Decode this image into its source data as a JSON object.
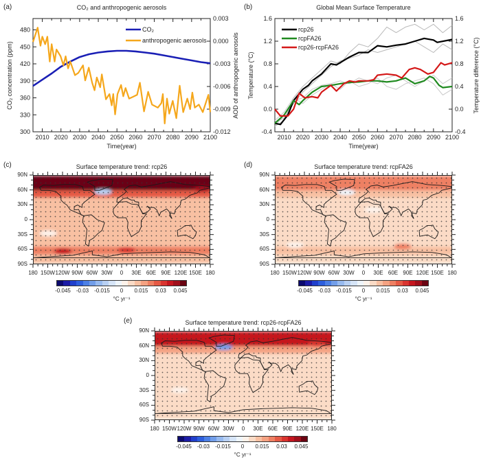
{
  "panels": {
    "a": {
      "label": "(a)"
    },
    "b": {
      "label": "(b)"
    },
    "c": {
      "label": "(c)"
    },
    "d": {
      "label": "(d)"
    },
    "e": {
      "label": "(e)"
    }
  },
  "colors": {
    "co2": "#1a1fb5",
    "aerosol": "#f5a71c",
    "rcp26": "#000000",
    "rcpFA26": "#1f8a1f",
    "diff": "#d41818",
    "ensemble": "#b0b0b0"
  },
  "map_axes": {
    "lat_ticks": [
      "90N",
      "60N",
      "30N",
      "0",
      "30S",
      "60S",
      "90S"
    ],
    "lon_ticks": [
      "180",
      "150W",
      "120W",
      "90W",
      "60W",
      "30W",
      "0",
      "30E",
      "60E",
      "90E",
      "120E",
      "150E",
      "180"
    ]
  },
  "colorbar": {
    "labels": [
      "-0.045",
      "-0.03",
      "-0.015",
      "0",
      "0.015",
      "0.03",
      "0.045"
    ],
    "unit": "°C yr⁻¹",
    "colors": [
      "#0c0a6e",
      "#1c1ca6",
      "#2140cc",
      "#2e5fdd",
      "#4d80e5",
      "#729ee9",
      "#97baef",
      "#b8d0f3",
      "#d6e5f8",
      "#eef5fb",
      "#fdf2ea",
      "#fbdbc6",
      "#f8c0a2",
      "#f4a282",
      "#ee8063",
      "#e55a45",
      "#d9342f",
      "#c5161f",
      "#a00f1b",
      "#6a0412"
    ]
  },
  "chart_data": [
    {
      "type": "line",
      "title": "CO₂ and anthropogenic aerosols",
      "xlabel": "Time(year)",
      "ylabel": "CO₂ concentration (ppm)",
      "ylabel_right": "AOD of anthropogenic aerosols",
      "xlim": [
        2005,
        2100
      ],
      "ylim": [
        300,
        500
      ],
      "ylim_right": [
        -0.012,
        0.003
      ],
      "xticks": [
        2010,
        2020,
        2030,
        2040,
        2050,
        2060,
        2070,
        2080,
        2090,
        2100
      ],
      "yticks": [
        300,
        330,
        360,
        390,
        420,
        450,
        480
      ],
      "yticks_right": [
        "-0.012",
        "-0.009",
        "-0.006",
        "-0.003",
        "0.000",
        "0.003"
      ],
      "legend": "top-right",
      "series": [
        {
          "name": "CO₂",
          "axis": "left",
          "color": "#1a1fb5",
          "x": [
            2005,
            2010,
            2015,
            2020,
            2025,
            2030,
            2035,
            2040,
            2045,
            2050,
            2055,
            2060,
            2065,
            2070,
            2075,
            2080,
            2085,
            2090,
            2095,
            2100
          ],
          "y": [
            381,
            392,
            403,
            415,
            424,
            432,
            437,
            440,
            442,
            443,
            443,
            442,
            440,
            438,
            435,
            432,
            429,
            426,
            423,
            421
          ]
        },
        {
          "name": "anthropogenic aerosols",
          "axis": "right",
          "color": "#f5a71c",
          "x": [
            2005,
            2007.5,
            2009,
            2010,
            2011.5,
            2012.7,
            2014,
            2015,
            2016.6,
            2017.6,
            2019.8,
            2021.3,
            2022.5,
            2023.8,
            2025,
            2027.5,
            2029.3,
            2031.8,
            2033,
            2034.9,
            2036.7,
            2038,
            2039.2,
            2041,
            2041.9,
            2044.1,
            2046,
            2047.2,
            2048,
            2049,
            2050.3,
            2052.2,
            2053.4,
            2054.6,
            2056.5,
            2058.3,
            2060.8,
            2062.3,
            2064.5,
            2066.7,
            2068.8,
            2071.9,
            2073.8,
            2074.6,
            2075.6,
            2076.8,
            2078,
            2079.9,
            2081.8,
            2083.6,
            2085.5,
            2087.7,
            2089.2,
            2090.4,
            2091.7,
            2093.9,
            2096,
            2099,
            2100
          ],
          "y": [
            -0.0001,
            0.0018,
            -0.0006,
            0.0006,
            -0.0004,
            0.0006,
            -0.0027,
            -0.0004,
            -0.0027,
            -0.0011,
            -0.002,
            -0.0032,
            -0.002,
            -0.0036,
            -0.0027,
            -0.0045,
            -0.0042,
            -0.0032,
            -0.0052,
            -0.0035,
            -0.0055,
            -0.0065,
            -0.0048,
            -0.0061,
            -0.0044,
            -0.0077,
            -0.007,
            -0.0085,
            -0.007,
            -0.0097,
            -0.007,
            -0.0058,
            -0.0073,
            -0.0062,
            -0.0076,
            -0.0074,
            -0.0071,
            -0.0055,
            -0.0093,
            -0.0067,
            -0.0084,
            -0.0088,
            -0.0082,
            -0.007,
            -0.0109,
            -0.0076,
            -0.0096,
            -0.0079,
            -0.0102,
            -0.0059,
            -0.0094,
            -0.0076,
            -0.009,
            -0.0068,
            -0.0088,
            -0.0084,
            -0.0094,
            -0.0071,
            -0.0094
          ]
        }
      ]
    },
    {
      "type": "line",
      "title": "Global Mean Surface Temperature",
      "xlabel": "Time(year)",
      "ylabel": "Temperature (°C)",
      "ylabel_right": "Temperature difference (°C)",
      "xlim": [
        2005,
        2100
      ],
      "ylim": [
        -0.4,
        1.6
      ],
      "ylim_right": [
        -0.4,
        1.6
      ],
      "xticks": [
        2010,
        2020,
        2030,
        2040,
        2050,
        2060,
        2070,
        2080,
        2090,
        2100
      ],
      "yticks": [
        "-0.4",
        "0.0",
        "0.4",
        "0.8",
        "1.2",
        "1.6"
      ],
      "yticks_right": [
        "-0.4",
        "0.0",
        "0.4",
        "0.8",
        "1.2",
        "1.6"
      ],
      "legend": "top-left",
      "series": [
        {
          "color": "#b8b8b8",
          "ensemble": true,
          "x": [
            2005,
            2010,
            2015,
            2020,
            2025,
            2030,
            2035,
            2040,
            2045,
            2050,
            2055,
            2060,
            2065,
            2070,
            2075,
            2080,
            2085,
            2090,
            2095,
            2100
          ],
          "y": [
            -0.3,
            -0.2,
            0.2,
            0.4,
            0.55,
            0.7,
            0.85,
            0.8,
            1.0,
            1.15,
            1.1,
            1.25,
            1.45,
            1.35,
            1.45,
            1.5,
            1.4,
            1.5,
            1.35,
            1.48
          ]
        },
        {
          "color": "#b8b8b8",
          "ensemble": true,
          "x": [
            2005,
            2010,
            2015,
            2020,
            2025,
            2030,
            2035,
            2040,
            2045,
            2050,
            2055,
            2060,
            2065,
            2070,
            2075,
            2080,
            2085,
            2090,
            2095,
            2100
          ],
          "y": [
            -0.25,
            -0.15,
            0.1,
            0.3,
            0.45,
            0.6,
            0.75,
            0.85,
            0.9,
            0.95,
            1.05,
            1.0,
            1.05,
            1.1,
            1.15,
            1.2,
            1.1,
            1.0,
            1.15,
            1.05
          ]
        },
        {
          "color": "#c8c8c8",
          "ensemble": true,
          "x": [
            2005,
            2010,
            2015,
            2020,
            2025,
            2030,
            2035,
            2040,
            2045,
            2050,
            2055,
            2060,
            2065,
            2070,
            2075,
            2080,
            2085,
            2090,
            2095,
            2100
          ],
          "y": [
            -0.3,
            -0.1,
            0.15,
            0.2,
            0.35,
            0.42,
            0.45,
            0.35,
            0.5,
            0.4,
            0.45,
            0.55,
            0.4,
            0.35,
            0.45,
            0.5,
            0.55,
            0.45,
            0.25,
            0.35
          ]
        },
        {
          "color": "#c8c8c8",
          "ensemble": true,
          "x": [
            2005,
            2010,
            2015,
            2020,
            2025,
            2030,
            2035,
            2040,
            2045,
            2050,
            2055,
            2060,
            2065,
            2070,
            2075,
            2080,
            2085,
            2090,
            2095,
            2100
          ],
          "y": [
            -0.2,
            -0.05,
            0.2,
            0.1,
            0.25,
            0.35,
            0.45,
            0.5,
            0.45,
            0.55,
            0.5,
            0.45,
            0.55,
            0.6,
            0.5,
            0.4,
            0.5,
            0.6,
            0.45,
            0.55
          ]
        },
        {
          "name": "rcp26",
          "color": "#000000",
          "x": [
            2005,
            2008,
            2012,
            2015,
            2020,
            2023,
            2025,
            2030,
            2035,
            2038,
            2045,
            2050,
            2055,
            2060,
            2065,
            2070,
            2075,
            2080,
            2085,
            2090,
            2092,
            2100
          ],
          "y": [
            -0.25,
            -0.27,
            -0.1,
            0.15,
            0.35,
            0.42,
            0.5,
            0.62,
            0.8,
            0.78,
            0.92,
            1.0,
            1.0,
            1.12,
            1.1,
            1.13,
            1.15,
            1.2,
            1.25,
            1.22,
            1.18,
            1.23
          ]
        },
        {
          "name": "rcpFA26",
          "color": "#1f8a1f",
          "x": [
            2005,
            2010,
            2015,
            2018,
            2020,
            2025,
            2030,
            2035,
            2040,
            2045,
            2050,
            2055,
            2060,
            2065,
            2070,
            2075,
            2080,
            2085,
            2088,
            2090,
            2093,
            2095,
            2100
          ],
          "y": [
            -0.25,
            -0.1,
            0.15,
            0.08,
            0.15,
            0.3,
            0.4,
            0.42,
            0.45,
            0.47,
            0.48,
            0.5,
            0.5,
            0.48,
            0.5,
            0.55,
            0.45,
            0.5,
            0.58,
            0.55,
            0.42,
            0.38,
            0.4
          ]
        },
        {
          "name": "rcp26-rcpFA26",
          "color": "#d41818",
          "x": [
            2005,
            2008,
            2012,
            2015,
            2018,
            2021,
            2025,
            2028,
            2030,
            2035,
            2038,
            2042,
            2045,
            2048,
            2050,
            2055,
            2058,
            2060,
            2065,
            2070,
            2073,
            2077,
            2080,
            2083,
            2087,
            2090,
            2094,
            2096,
            2100
          ],
          "y": [
            0.0,
            -0.12,
            -0.12,
            0.0,
            0.28,
            0.2,
            0.22,
            0.2,
            0.3,
            0.42,
            0.32,
            0.45,
            0.5,
            0.48,
            0.5,
            0.5,
            0.52,
            0.6,
            0.62,
            0.6,
            0.55,
            0.7,
            0.73,
            0.7,
            0.62,
            0.65,
            0.82,
            0.78,
            0.82
          ]
        }
      ]
    },
    {
      "type": "heatmap",
      "title": "Surface temperature trend: rcp26",
      "zones": [
        {
          "lat": [
            60,
            90
          ],
          "value": 0.045
        },
        {
          "lat": [
            45,
            60
          ],
          "value": 0.025
        },
        {
          "lat": [
            -55,
            45
          ],
          "value": 0.012
        },
        {
          "lat": [
            -72,
            -55
          ],
          "value": 0.02
        },
        {
          "lat": [
            -90,
            -72
          ],
          "value": 0.012
        }
      ],
      "spots": [
        {
          "lon": -38,
          "lat": 57,
          "value": -0.012
        },
        {
          "lon": -120,
          "lat": -65,
          "value": 0.035
        },
        {
          "lon": 10,
          "lat": -62,
          "value": 0.03
        },
        {
          "lon": 165,
          "lat": 63,
          "value": 0.04
        },
        {
          "lon": -150,
          "lat": -28,
          "value": 0.003
        }
      ]
    },
    {
      "type": "heatmap",
      "title": "Surface temperature trend: rcpFA26",
      "zones": [
        {
          "lat": [
            60,
            90
          ],
          "value": 0.022
        },
        {
          "lat": [
            45,
            60
          ],
          "value": 0.012
        },
        {
          "lat": [
            -55,
            45
          ],
          "value": 0.006
        },
        {
          "lat": [
            -72,
            -55
          ],
          "value": 0.014
        },
        {
          "lat": [
            -90,
            -72
          ],
          "value": 0.008
        }
      ],
      "spots": [
        {
          "lon": -35,
          "lat": 56,
          "value": -0.004
        },
        {
          "lon": 80,
          "lat": -55,
          "value": 0.02
        },
        {
          "lon": -140,
          "lat": -52,
          "value": 0.0
        },
        {
          "lon": 20,
          "lat": 20,
          "value": 0.002
        }
      ]
    },
    {
      "type": "heatmap",
      "title": "Surface temperature trend: rcp26-rcpFA26",
      "zones": [
        {
          "lat": [
            60,
            90
          ],
          "value": 0.038
        },
        {
          "lat": [
            45,
            60
          ],
          "value": 0.015
        },
        {
          "lat": [
            -55,
            45
          ],
          "value": 0.007
        },
        {
          "lat": [
            -72,
            -55
          ],
          "value": 0.008
        },
        {
          "lat": [
            -90,
            -72
          ],
          "value": 0.005
        }
      ],
      "spots": [
        {
          "lon": -40,
          "lat": 58,
          "value": -0.022
        },
        {
          "lon": 150,
          "lat": 65,
          "value": 0.03
        },
        {
          "lon": -130,
          "lat": -30,
          "value": 0.002
        }
      ]
    }
  ]
}
